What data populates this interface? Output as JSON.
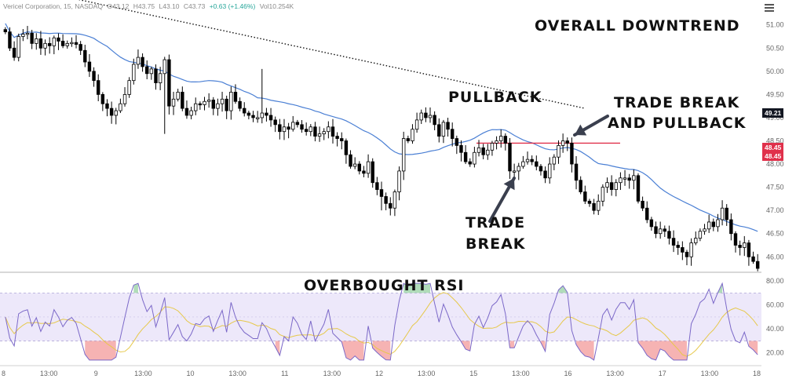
{
  "header": {
    "symbol": "Vericel Corporation, 15, NASDAQ",
    "open": "O43.12",
    "high": "H43.75",
    "low": "L43.10",
    "close": "C43.73",
    "change": "+0.63 (+1.46%)",
    "volume": "Vol10.254K"
  },
  "annotations": {
    "overall_downtrend": "OVERALL DOWNTREND",
    "pullback": "PULLBACK",
    "trade_break_pullback_line1": "TRADE BREAK",
    "trade_break_pullback_line2": "AND PULLBACK",
    "trade_break_line1": "TRADE",
    "trade_break_line2": "BREAK",
    "overbought_rsi": "OVERBOUGHT RSI"
  },
  "price_labels": {
    "last": "49.21",
    "level_a": "48.45",
    "level_b": "48.45"
  },
  "colors": {
    "up_candle": "#ffffff",
    "down_candle": "#000000",
    "ma_line": "#4a7fd4",
    "rsi_line": "#7b68c8",
    "rsi_ma": "#e6c84a",
    "rsi_band": "#ede8fa",
    "level_line": "#e0314b",
    "oversold_fill": "#f08080",
    "overbought_fill": "#7cc48a"
  },
  "chart_data": [
    {
      "type": "candlestick",
      "title": "",
      "y_ticks": [
        "51.00",
        "50.50",
        "50.00",
        "49.50",
        "49.00",
        "48.50",
        "48.00",
        "47.50",
        "47.00",
        "46.50",
        "46.00"
      ],
      "x_ticks": [
        "8",
        "13:00",
        "9",
        "13:00",
        "10",
        "13:00",
        "11",
        "13:00",
        "12",
        "13:00",
        "15",
        "13:00",
        "16",
        "13:00",
        "17",
        "13:00",
        "18"
      ],
      "ylim": [
        45.7,
        51.3
      ],
      "level_line": 48.45,
      "trendline": [
        [
          0,
          51.9
        ],
        [
          131,
          49.2
        ]
      ],
      "closes": [
        50.85,
        50.5,
        50.3,
        50.75,
        50.8,
        50.82,
        50.6,
        50.7,
        50.5,
        50.6,
        50.55,
        50.72,
        50.65,
        50.55,
        50.6,
        50.62,
        50.58,
        50.45,
        50.2,
        50.0,
        49.8,
        49.5,
        49.3,
        49.2,
        49.05,
        49.15,
        49.3,
        49.5,
        49.8,
        50.15,
        50.3,
        50.1,
        49.95,
        50.05,
        49.75,
        49.95,
        50.25,
        49.25,
        49.4,
        49.55,
        49.2,
        49.05,
        49.15,
        49.3,
        49.28,
        49.35,
        49.38,
        49.2,
        49.3,
        49.4,
        49.15,
        49.55,
        49.35,
        49.2,
        49.1,
        49.05,
        49.0,
        49.0,
        49.1,
        49.05,
        48.95,
        48.85,
        48.7,
        48.8,
        48.75,
        48.9,
        48.85,
        48.75,
        48.7,
        48.8,
        48.6,
        48.65,
        48.7,
        48.8,
        48.6,
        48.55,
        48.5,
        48.2,
        47.95,
        48.0,
        47.85,
        47.8,
        48.05,
        47.6,
        47.45,
        47.3,
        47.15,
        47.05,
        47.4,
        47.85,
        48.55,
        48.5,
        48.75,
        48.95,
        49.1,
        49.0,
        49.05,
        48.85,
        48.6,
        48.9,
        48.75,
        48.55,
        48.4,
        48.25,
        48.05,
        48.0,
        48.25,
        48.35,
        48.2,
        48.3,
        48.45,
        48.5,
        48.6,
        48.45,
        47.85,
        47.85,
        47.95,
        48.05,
        48.1,
        48.05,
        47.95,
        47.85,
        47.7,
        48.0,
        48.15,
        48.4,
        48.5,
        48.45,
        48.0,
        47.65,
        47.4,
        47.2,
        47.15,
        47.0,
        47.2,
        47.5,
        47.6,
        47.45,
        47.6,
        47.7,
        47.7,
        47.65,
        47.75,
        47.2,
        47.05,
        46.8,
        46.65,
        46.5,
        46.6,
        46.55,
        46.4,
        46.25,
        46.2,
        46.1,
        46.0,
        46.3,
        46.4,
        46.55,
        46.6,
        46.75,
        46.65,
        46.8,
        47.05,
        46.8,
        46.5,
        46.25,
        46.2,
        46.3,
        46.0,
        45.9,
        45.75
      ]
    },
    {
      "type": "line",
      "title": "",
      "y_ticks": [
        "80.00",
        "60.00",
        "40.00",
        "20.00"
      ],
      "ylim": [
        10,
        84
      ],
      "band": [
        30,
        70
      ]
    }
  ]
}
